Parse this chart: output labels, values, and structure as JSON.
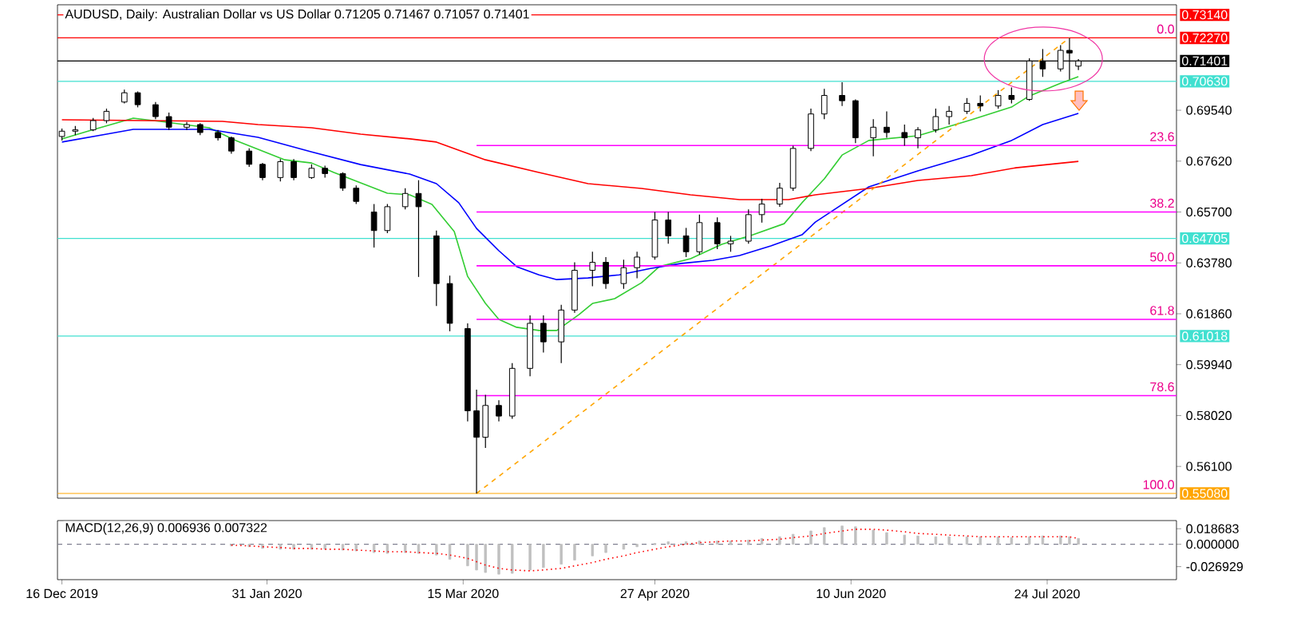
{
  "chart_data": [
    {
      "type": "candlestick",
      "title": "AUDUSD, Daily:  Australian Dollar vs US Dollar  0.71205 0.71467 0.71057 0.71401",
      "x": [
        "2019-12-16",
        "2019-12-19",
        "2019-12-23",
        "2019-12-26",
        "2019-12-30",
        "2020-01-02",
        "2020-01-06",
        "2020-01-09",
        "2020-01-13",
        "2020-01-16",
        "2020-01-20",
        "2020-01-23",
        "2020-01-27",
        "2020-01-30",
        "2020-02-03",
        "2020-02-06",
        "2020-02-10",
        "2020-02-13",
        "2020-02-17",
        "2020-02-20",
        "2020-02-24",
        "2020-02-27",
        "2020-03-02",
        "2020-03-05",
        "2020-03-09",
        "2020-03-12",
        "2020-03-16",
        "2020-03-18",
        "2020-03-20",
        "2020-03-23",
        "2020-03-26",
        "2020-03-30",
        "2020-04-02",
        "2020-04-06",
        "2020-04-09",
        "2020-04-13",
        "2020-04-16",
        "2020-04-20",
        "2020-04-23",
        "2020-04-27",
        "2020-04-30",
        "2020-05-04",
        "2020-05-07",
        "2020-05-11",
        "2020-05-14",
        "2020-05-18",
        "2020-05-21",
        "2020-05-25",
        "2020-05-28",
        "2020-06-01",
        "2020-06-04",
        "2020-06-08",
        "2020-06-11",
        "2020-06-15",
        "2020-06-18",
        "2020-06-22",
        "2020-06-25",
        "2020-06-29",
        "2020-07-02",
        "2020-07-06",
        "2020-07-09",
        "2020-07-13",
        "2020-07-16",
        "2020-07-20",
        "2020-07-23",
        "2020-07-27",
        "2020-07-29",
        "2020-07-31"
      ],
      "ohlc": [
        [
          0.6855,
          0.6885,
          0.684,
          0.6875
        ],
        [
          0.6875,
          0.6895,
          0.686,
          0.688
        ],
        [
          0.688,
          0.6925,
          0.6875,
          0.6915
        ],
        [
          0.6915,
          0.696,
          0.6905,
          0.695
        ],
        [
          0.6985,
          0.7032,
          0.698,
          0.702
        ],
        [
          0.702,
          0.7025,
          0.6965,
          0.6975
        ],
        [
          0.6975,
          0.6985,
          0.692,
          0.693
        ],
        [
          0.693,
          0.6945,
          0.688,
          0.689
        ],
        [
          0.689,
          0.691,
          0.688,
          0.69
        ],
        [
          0.69,
          0.6905,
          0.686,
          0.687
        ],
        [
          0.687,
          0.688,
          0.684,
          0.685
        ],
        [
          0.685,
          0.6855,
          0.679,
          0.68
        ],
        [
          0.68,
          0.681,
          0.674,
          0.675
        ],
        [
          0.675,
          0.6755,
          0.669,
          0.67
        ],
        [
          0.67,
          0.677,
          0.6685,
          0.676
        ],
        [
          0.676,
          0.677,
          0.669,
          0.67
        ],
        [
          0.67,
          0.675,
          0.6695,
          0.6735
        ],
        [
          0.6735,
          0.6745,
          0.67,
          0.6715
        ],
        [
          0.6715,
          0.672,
          0.665,
          0.666
        ],
        [
          0.666,
          0.667,
          0.66,
          0.661
        ],
        [
          0.657,
          0.66,
          0.6436,
          0.65
        ],
        [
          0.65,
          0.66,
          0.649,
          0.659
        ],
        [
          0.659,
          0.666,
          0.658,
          0.664
        ],
        [
          0.664,
          0.669,
          0.6325,
          0.659
        ],
        [
          0.648,
          0.65,
          0.6215,
          0.63
        ],
        [
          0.63,
          0.633,
          0.612,
          0.615
        ],
        [
          0.613,
          0.615,
          0.578,
          0.582
        ],
        [
          0.582,
          0.59,
          0.5508,
          0.572
        ],
        [
          0.572,
          0.588,
          0.568,
          0.584
        ],
        [
          0.584,
          0.586,
          0.578,
          0.58
        ],
        [
          0.58,
          0.6,
          0.579,
          0.598
        ],
        [
          0.598,
          0.618,
          0.595,
          0.615
        ],
        [
          0.615,
          0.618,
          0.604,
          0.608
        ],
        [
          0.608,
          0.622,
          0.6,
          0.62
        ],
        [
          0.62,
          0.638,
          0.619,
          0.635
        ],
        [
          0.635,
          0.642,
          0.629,
          0.638
        ],
        [
          0.638,
          0.64,
          0.628,
          0.63
        ],
        [
          0.63,
          0.639,
          0.628,
          0.636
        ],
        [
          0.636,
          0.642,
          0.632,
          0.64
        ],
        [
          0.64,
          0.657,
          0.639,
          0.654
        ],
        [
          0.654,
          0.657,
          0.645,
          0.648
        ],
        [
          0.648,
          0.651,
          0.64,
          0.642
        ],
        [
          0.642,
          0.656,
          0.641,
          0.653
        ],
        [
          0.653,
          0.655,
          0.643,
          0.645
        ],
        [
          0.645,
          0.648,
          0.642,
          0.646
        ],
        [
          0.646,
          0.658,
          0.645,
          0.656
        ],
        [
          0.656,
          0.662,
          0.653,
          0.66
        ],
        [
          0.66,
          0.668,
          0.659,
          0.666
        ],
        [
          0.666,
          0.682,
          0.665,
          0.681
        ],
        [
          0.681,
          0.696,
          0.68,
          0.694
        ],
        [
          0.694,
          0.7035,
          0.692,
          0.701
        ],
        [
          0.701,
          0.706,
          0.697,
          0.699
        ],
        [
          0.699,
          0.6995,
          0.683,
          0.685
        ],
        [
          0.685,
          0.692,
          0.678,
          0.689
        ],
        [
          0.689,
          0.695,
          0.685,
          0.687
        ],
        [
          0.687,
          0.69,
          0.682,
          0.685
        ],
        [
          0.685,
          0.689,
          0.681,
          0.688
        ],
        [
          0.688,
          0.696,
          0.687,
          0.693
        ],
        [
          0.693,
          0.697,
          0.69,
          0.695
        ],
        [
          0.695,
          0.7,
          0.694,
          0.698
        ],
        [
          0.698,
          0.701,
          0.695,
          0.697
        ],
        [
          0.697,
          0.703,
          0.696,
          0.701
        ],
        [
          0.701,
          0.704,
          0.698,
          0.6995
        ],
        [
          0.6995,
          0.715,
          0.699,
          0.714
        ],
        [
          0.714,
          0.7185,
          0.708,
          0.711
        ],
        [
          0.711,
          0.72,
          0.71,
          0.718
        ],
        [
          0.718,
          0.7227,
          0.707,
          0.717
        ],
        [
          0.71205,
          0.71467,
          0.71057,
          0.71401
        ]
      ],
      "series": [
        {
          "type": "line",
          "color": "#32cd32",
          "x": [
            "2019-12-16",
            "2019-12-22",
            "2020-01-01",
            "2020-01-07",
            "2020-01-18",
            "2020-01-24",
            "2020-02-04",
            "2020-02-10",
            "2020-02-15",
            "2020-02-27",
            "2020-03-03",
            "2020-03-08",
            "2020-03-13",
            "2020-03-16",
            "2020-03-20",
            "2020-03-23",
            "2020-03-27",
            "2020-04-01",
            "2020-04-05",
            "2020-04-10",
            "2020-04-13",
            "2020-04-18",
            "2020-04-24",
            "2020-04-28",
            "2020-05-05",
            "2020-05-12",
            "2020-05-19",
            "2020-05-26",
            "2020-05-30",
            "2020-06-04",
            "2020-06-08",
            "2020-06-14",
            "2020-06-25",
            "2020-07-07",
            "2020-07-16",
            "2020-07-20",
            "2020-07-27",
            "2020-07-31"
          ],
          "values": [
            0.6846,
            0.6876,
            0.6924,
            0.6912,
            0.6888,
            0.684,
            0.6767,
            0.6755,
            0.6719,
            0.6641,
            0.6635,
            0.6599,
            0.6496,
            0.6327,
            0.6225,
            0.6165,
            0.6135,
            0.6123,
            0.6123,
            0.6183,
            0.6225,
            0.6243,
            0.6303,
            0.6364,
            0.6394,
            0.6448,
            0.6484,
            0.6526,
            0.6605,
            0.6695,
            0.6785,
            0.684,
            0.6858,
            0.6918,
            0.6966,
            0.7008,
            0.7056,
            0.7081
          ]
        },
        {
          "type": "line",
          "color": "#0000ff",
          "x": [
            "2019-12-16",
            "2019-12-26",
            "2020-01-01",
            "2020-01-07",
            "2020-01-18",
            "2020-01-29",
            "2020-02-10",
            "2020-02-21",
            "2020-03-03",
            "2020-03-09",
            "2020-03-14",
            "2020-03-18",
            "2020-03-23",
            "2020-03-27",
            "2020-04-01",
            "2020-04-05",
            "2020-04-12",
            "2020-04-19",
            "2020-04-26",
            "2020-05-03",
            "2020-05-10",
            "2020-05-16",
            "2020-05-23",
            "2020-05-30",
            "2020-06-02",
            "2020-06-14",
            "2020-06-25",
            "2020-07-07",
            "2020-07-16",
            "2020-07-23",
            "2020-07-31"
          ],
          "values": [
            0.6834,
            0.6864,
            0.6882,
            0.6882,
            0.6882,
            0.6852,
            0.6797,
            0.6749,
            0.6713,
            0.6677,
            0.6605,
            0.6508,
            0.6424,
            0.6364,
            0.6333,
            0.6315,
            0.6321,
            0.6333,
            0.6357,
            0.6376,
            0.6388,
            0.6406,
            0.6442,
            0.6484,
            0.6532,
            0.6665,
            0.6725,
            0.6785,
            0.684,
            0.69,
            0.6942
          ]
        },
        {
          "type": "line",
          "color": "#ff0000",
          "x": [
            "2019-12-16",
            "2020-01-21",
            "2020-01-29",
            "2020-02-10",
            "2020-02-21",
            "2020-03-03",
            "2020-03-09",
            "2020-03-20",
            "2020-04-01",
            "2020-04-12",
            "2020-04-24",
            "2020-05-05",
            "2020-05-16",
            "2020-05-27",
            "2020-06-02",
            "2020-06-14",
            "2020-06-25",
            "2020-07-07",
            "2020-07-17",
            "2020-07-31"
          ],
          "values": [
            0.6918,
            0.6912,
            0.69,
            0.6888,
            0.6864,
            0.6846,
            0.6834,
            0.6767,
            0.6719,
            0.6677,
            0.6659,
            0.6635,
            0.6617,
            0.6617,
            0.6635,
            0.6659,
            0.6689,
            0.6707,
            0.6737,
            0.6761
          ]
        },
        {
          "type": "line",
          "color": "#ffa500",
          "line_style": "dashed",
          "x": [
            "2020-03-18",
            "2020-07-29"
          ],
          "values": [
            0.5508,
            0.7227
          ]
        },
        {
          "type": "line",
          "color": "#ff00ff",
          "x": [
            "2020-03-18",
            "2020-08-22"
          ],
          "values": [
            0.6821,
            0.6821
          ]
        },
        {
          "type": "line",
          "color": "#ff00ff",
          "x": [
            "2020-03-18",
            "2020-08-22"
          ],
          "values": [
            0.657,
            0.657
          ]
        },
        {
          "type": "line",
          "color": "#ff00ff",
          "x": [
            "2020-03-18",
            "2020-08-22"
          ],
          "values": [
            0.6367,
            0.6367
          ]
        },
        {
          "type": "line",
          "color": "#ff00ff",
          "x": [
            "2020-03-18",
            "2020-08-22"
          ],
          "values": [
            0.6165,
            0.6165
          ]
        },
        {
          "type": "line",
          "color": "#ff00ff",
          "x": [
            "2020-03-18",
            "2020-08-22"
          ],
          "values": [
            0.5877,
            0.5877
          ]
        }
      ],
      "ref_lines": [
        {
          "axis": "y",
          "value": 0.7314,
          "label": "0.73140",
          "color": "#ff0000"
        },
        {
          "axis": "y",
          "value": 0.7227,
          "label": "0.72270",
          "color": "#ff0000"
        },
        {
          "axis": "y",
          "value": 0.71401,
          "label": "0.71401",
          "color": "#000000"
        },
        {
          "axis": "y",
          "value": 0.7063,
          "label": "0.70630",
          "color": "#40e0d0"
        },
        {
          "axis": "y",
          "value": 0.64705,
          "label": "0.64705",
          "color": "#40e0d0"
        },
        {
          "axis": "y",
          "value": 0.61018,
          "label": "0.61018",
          "color": "#40e0d0"
        },
        {
          "axis": "y",
          "value": 0.5508,
          "label": "0.55080",
          "color": "#ffa500"
        }
      ],
      "annotations": [
        {
          "text": "0.0",
          "x": "2020-08-22",
          "y": 0.7227
        },
        {
          "text": "23.6",
          "x": "2020-08-22",
          "y": 0.6821
        },
        {
          "text": "38.2",
          "x": "2020-08-22",
          "y": 0.657
        },
        {
          "text": "50.0",
          "x": "2020-08-22",
          "y": 0.6367
        },
        {
          "text": "61.8",
          "x": "2020-08-22",
          "y": 0.6165
        },
        {
          "text": "78.6",
          "x": "2020-08-22",
          "y": 0.5877
        },
        {
          "text": "100.0",
          "x": "2020-08-22",
          "y": 0.5508
        }
      ],
      "xlim": [
        "2019-12-15",
        "2020-08-22"
      ],
      "ylim": [
        0.549,
        0.7352
      ],
      "yticks": [
        {
          "value": 0.6954,
          "label": "0.69540"
        },
        {
          "value": 0.6762,
          "label": "0.67620"
        },
        {
          "value": 0.657,
          "label": "0.65700"
        },
        {
          "value": 0.6378,
          "label": "0.63780"
        },
        {
          "value": 0.6186,
          "label": "0.61860"
        },
        {
          "value": 0.5994,
          "label": "0.59940"
        },
        {
          "value": 0.5802,
          "label": "0.58020"
        },
        {
          "value": 0.561,
          "label": "0.56100"
        }
      ],
      "tick_labels": "y"
    },
    {
      "type": "bar",
      "title": "MACD(12,26,9) 0.006936 0.007322",
      "x": [
        "2020-01-23",
        "2020-01-27",
        "2020-01-30",
        "2020-02-03",
        "2020-02-06",
        "2020-02-10",
        "2020-02-13",
        "2020-02-17",
        "2020-02-20",
        "2020-02-24",
        "2020-02-27",
        "2020-03-02",
        "2020-03-05",
        "2020-03-09",
        "2020-03-12",
        "2020-03-16",
        "2020-03-18",
        "2020-03-20",
        "2020-03-23",
        "2020-03-26",
        "2020-03-30",
        "2020-04-02",
        "2020-04-06",
        "2020-04-09",
        "2020-04-13",
        "2020-04-16",
        "2020-04-20",
        "2020-04-23",
        "2020-04-27",
        "2020-04-30",
        "2020-05-04",
        "2020-05-07",
        "2020-05-11",
        "2020-05-14",
        "2020-05-18",
        "2020-05-21",
        "2020-05-25",
        "2020-05-28",
        "2020-06-01",
        "2020-06-04",
        "2020-06-08",
        "2020-06-11",
        "2020-06-15",
        "2020-06-18",
        "2020-06-22",
        "2020-06-25",
        "2020-06-29",
        "2020-07-02",
        "2020-07-06",
        "2020-07-09",
        "2020-07-13",
        "2020-07-16",
        "2020-07-20",
        "2020-07-23",
        "2020-07-27",
        "2020-07-29",
        "2020-07-31"
      ],
      "series": [
        {
          "type": "bar",
          "color": "#c0c0c0",
          "values": [
            -0.002,
            -0.003,
            -0.005,
            -0.006,
            -0.006,
            -0.006,
            -0.006,
            -0.007,
            -0.008,
            -0.01,
            -0.011,
            -0.01,
            -0.011,
            -0.013,
            -0.018,
            -0.026,
            -0.031,
            -0.034,
            -0.036,
            -0.035,
            -0.031,
            -0.028,
            -0.024,
            -0.019,
            -0.014,
            -0.01,
            -0.006,
            -0.003,
            0.001,
            0.003,
            0.003,
            0.004,
            0.004,
            0.004,
            0.005,
            0.007,
            0.009,
            0.012,
            0.016,
            0.02,
            0.022,
            0.021,
            0.017,
            0.014,
            0.011,
            0.01,
            0.009,
            0.009,
            0.009,
            0.009,
            0.009,
            0.008,
            0.009,
            0.01,
            0.01,
            0.009,
            0.007
          ]
        },
        {
          "type": "line",
          "color": "#ff0000",
          "line_style": "dotted",
          "values": [
            -0.001,
            -0.002,
            -0.003,
            -0.004,
            -0.005,
            -0.005,
            -0.006,
            -0.006,
            -0.007,
            -0.008,
            -0.009,
            -0.009,
            -0.01,
            -0.011,
            -0.013,
            -0.017,
            -0.021,
            -0.025,
            -0.029,
            -0.031,
            -0.032,
            -0.031,
            -0.029,
            -0.026,
            -0.022,
            -0.018,
            -0.014,
            -0.01,
            -0.006,
            -0.003,
            0.0,
            0.002,
            0.003,
            0.004,
            0.004,
            0.005,
            0.006,
            0.008,
            0.01,
            0.013,
            0.016,
            0.018,
            0.018,
            0.017,
            0.015,
            0.013,
            0.012,
            0.011,
            0.01,
            0.009,
            0.009,
            0.009,
            0.009,
            0.009,
            0.009,
            0.009,
            0.007
          ]
        }
      ],
      "ref_lines": [
        {
          "axis": "y",
          "value": 0,
          "color": "#808090",
          "line_style": "dashed"
        }
      ],
      "xlim": [
        "2019-12-15",
        "2020-08-22"
      ],
      "ylim": [
        -0.0426,
        0.0285
      ],
      "xticks": [
        {
          "value": "2019-12-16",
          "label": "16 Dec 2019"
        },
        {
          "value": "2020-01-31",
          "label": "31 Jan 2020"
        },
        {
          "value": "2020-03-15",
          "label": "15 Mar 2020"
        },
        {
          "value": "2020-04-27",
          "label": "27 Apr 2020"
        },
        {
          "value": "2020-06-10",
          "label": "10 Jun 2020"
        },
        {
          "value": "2020-07-24",
          "label": "24 Jul 2020"
        }
      ],
      "yticks": [
        {
          "value": 0.018683,
          "label": "0.018683"
        },
        {
          "value": 0,
          "label": "0.000000"
        },
        {
          "value": -0.026929,
          "label": "-0.026929"
        }
      ]
    }
  ]
}
